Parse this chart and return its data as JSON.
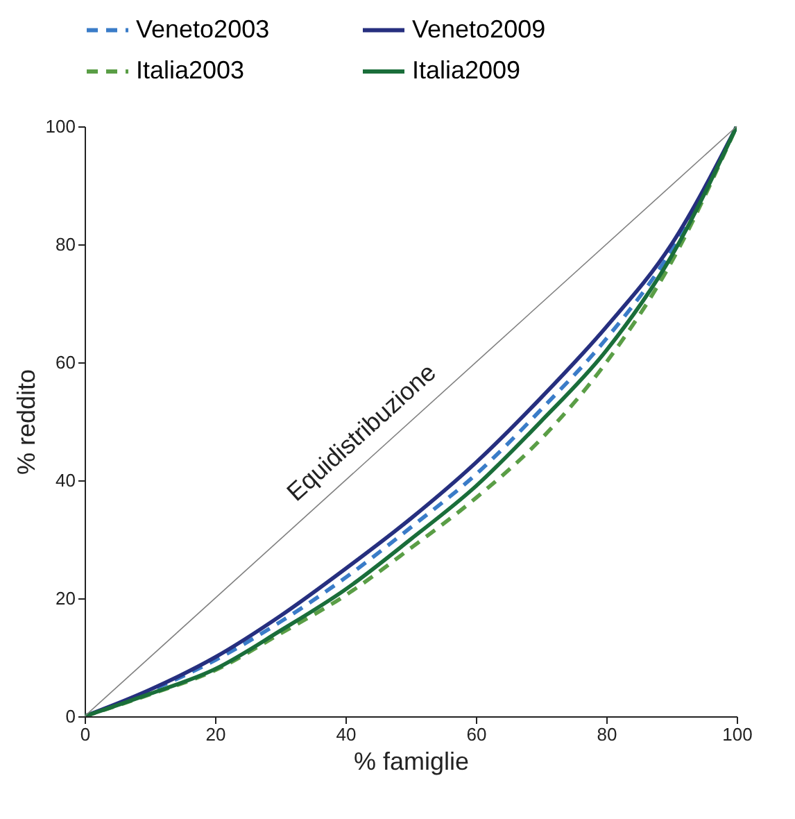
{
  "chart_data": {
    "type": "line",
    "xlabel": "% famiglie",
    "ylabel": "% reddito",
    "x": [
      0,
      10,
      20,
      30,
      40,
      50,
      60,
      70,
      80,
      90,
      100
    ],
    "series": [
      {
        "name": "Veneto2003",
        "color": "#3a7cc8",
        "line_style": "dashed",
        "values": [
          0,
          4.3,
          9.5,
          16,
          23.5,
          32,
          41,
          52,
          64,
          79,
          100
        ]
      },
      {
        "name": "Veneto2009",
        "color": "#262f7f",
        "line_style": "solid",
        "values": [
          0,
          4.5,
          10,
          17,
          25,
          33.5,
          43,
          54,
          66,
          80,
          100
        ]
      },
      {
        "name": "Italia2003",
        "color": "#5a9e46",
        "line_style": "dashed",
        "values": [
          0,
          3.7,
          7.8,
          14,
          20.5,
          28.5,
          37,
          47,
          60,
          77,
          100
        ]
      },
      {
        "name": "Italia2009",
        "color": "#1a6e3a",
        "line_style": "solid",
        "values": [
          0,
          3.8,
          8,
          14.5,
          21.5,
          30,
          39,
          50,
          62,
          78,
          100
        ]
      },
      {
        "color": "#808080",
        "line_style": "solid",
        "x": [
          0,
          100
        ],
        "values": [
          0,
          100
        ]
      }
    ],
    "annotations": [
      {
        "text": "Equidistribuzione",
        "x": 45,
        "y": 45
      }
    ],
    "xlim": [
      0,
      100
    ],
    "ylim": [
      0,
      100
    ],
    "xticks": [
      0,
      20,
      40,
      60,
      80,
      100
    ],
    "yticks": [
      0,
      20,
      40,
      60,
      80,
      100
    ],
    "grid": false,
    "legend": "top",
    "marker": "none"
  }
}
